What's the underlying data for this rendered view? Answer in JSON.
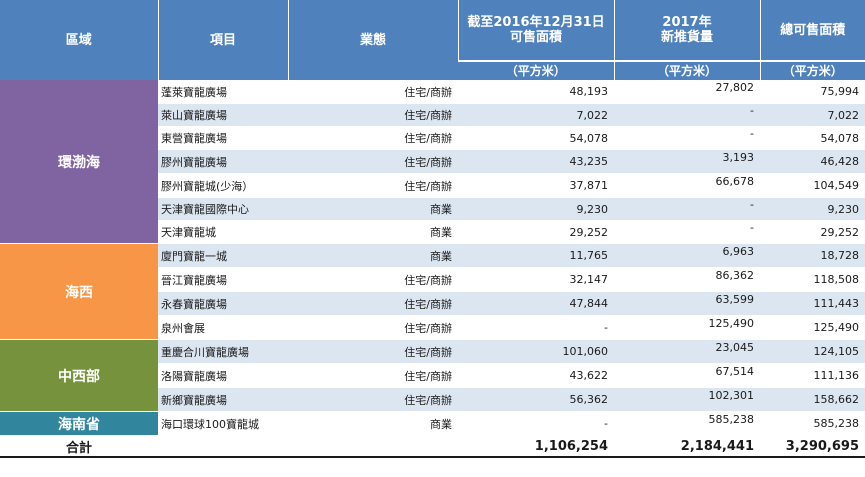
{
  "header": {
    "region": "區域",
    "project": "項目",
    "type": "業態",
    "col1": "截至2016年12月31日\n可售面積",
    "col2": "2017年\n新推貨量",
    "col3": "總可售面積",
    "unit": "（平方米）"
  },
  "regions": [
    {
      "name": "環渤海",
      "color": "#8064a2",
      "rows": 7
    },
    {
      "name": "海西",
      "color": "#f79646",
      "rows": 4
    },
    {
      "name": "中西部",
      "color": "#76923c",
      "rows": 3
    },
    {
      "name": "海南省",
      "color": "#31859c",
      "rows": 1
    }
  ],
  "rows": [
    {
      "project": "蓬萊寶龍廣場",
      "type": "住宅/商辦",
      "available": "48,193",
      "new_supply": "27,802",
      "total": "75,994"
    },
    {
      "project": "萊山寶龍廣場",
      "type": "住宅/商辦",
      "available": "7,022",
      "new_supply": "-",
      "total": "7,022"
    },
    {
      "project": "東營寶龍廣場",
      "type": "住宅/商辦",
      "available": "54,078",
      "new_supply": "-",
      "total": "54,078"
    },
    {
      "project": "膠州寶龍廣場",
      "type": "住宅/商辦",
      "available": "43,235",
      "new_supply": "3,193",
      "total": "46,428"
    },
    {
      "project": "膠州寶龍城(少海）",
      "type": "住宅/商辦",
      "available": "37,871",
      "new_supply": "66,678",
      "total": "104,549"
    },
    {
      "project": "天津寶龍國際中心",
      "type": "商業",
      "available": "9,230",
      "new_supply": "-",
      "total": "9,230"
    },
    {
      "project": "天津寶龍城",
      "type": "商業",
      "available": "29,252",
      "new_supply": "-",
      "total": "29,252"
    },
    {
      "project": "廈門寶龍一城",
      "type": "商業",
      "available": "11,765",
      "new_supply": "6,963",
      "total": "18,728"
    },
    {
      "project": "晉江寶龍廣場",
      "type": "住宅/商辦",
      "available": "32,147",
      "new_supply": "86,362",
      "total": "118,508"
    },
    {
      "project": "永春寶龍廣場",
      "type": "住宅/商辦",
      "available": "47,844",
      "new_supply": "63,599",
      "total": "111,443"
    },
    {
      "project": "泉州會展",
      "type": "住宅/商辦",
      "available": "-",
      "new_supply": "125,490",
      "total": "125,490"
    },
    {
      "project": "重慶合川寶龍廣場",
      "type": "住宅/商辦",
      "available": "101,060",
      "new_supply": "23,045",
      "total": "124,105"
    },
    {
      "project": "洛陽寶龍廣場",
      "type": "住宅/商辦",
      "available": "43,622",
      "new_supply": "67,514",
      "total": "111,136"
    },
    {
      "project": "新鄉寶龍廣場",
      "type": "住宅/商辦",
      "available": "56,362",
      "new_supply": "102,301",
      "total": "158,662"
    },
    {
      "project": "海口環球100寶龍城",
      "type": "商業",
      "available": "-",
      "new_supply": "585,238",
      "total": "585,238"
    }
  ],
  "total": {
    "label": "合計",
    "available": "1,106,254",
    "new_supply": "2,184,441",
    "total": "3,290,695"
  }
}
